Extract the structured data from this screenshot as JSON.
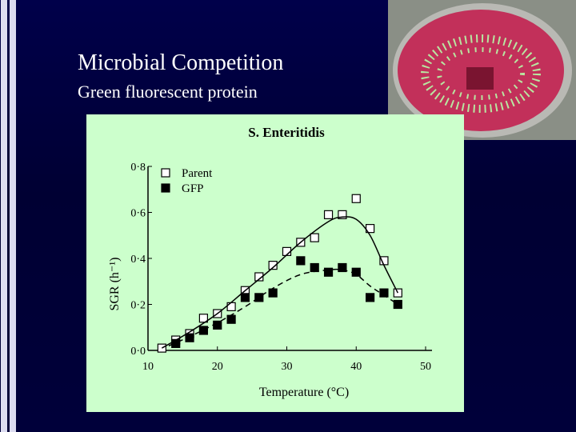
{
  "header": {
    "title": "Microbial Competition",
    "subtitle": "Green fluorescent protein"
  },
  "chart_data": {
    "type": "scatter",
    "title": "S. Enteritidis",
    "x_label": "Temperature (°C)",
    "y_label": "SGR (h⁻¹)",
    "xlim": [
      10,
      50
    ],
    "xticks": [
      10,
      20,
      30,
      40,
      50
    ],
    "ylim": [
      0,
      0.8
    ],
    "yticks": [
      {
        "value": 0,
        "label": "0·0"
      },
      {
        "value": 0.2,
        "label": "0·2"
      },
      {
        "value": 0.4,
        "label": "0·4"
      },
      {
        "value": 0.6,
        "label": "0·6"
      },
      {
        "value": 0.8,
        "label": "0·8"
      }
    ],
    "legend": "upper left",
    "series": [
      {
        "name": "Parent",
        "color": "#000000",
        "marker": "open-square",
        "line": "none",
        "x": [
          12,
          14,
          16,
          18,
          20,
          22,
          24,
          26,
          28,
          30,
          32,
          34,
          36,
          38,
          40,
          42,
          44,
          46
        ],
        "values": [
          0.01,
          0.045,
          0.073,
          0.14,
          0.16,
          0.19,
          0.26,
          0.32,
          0.37,
          0.43,
          0.47,
          0.49,
          0.59,
          0.59,
          0.66,
          0.53,
          0.39,
          0.25
        ]
      },
      {
        "name": "GFP",
        "color": "#000000",
        "marker": "filled-square",
        "line": "none",
        "x": [
          14,
          16,
          18,
          20,
          22,
          24,
          26,
          28,
          32,
          34,
          36,
          38,
          40,
          42,
          44,
          46
        ],
        "values": [
          0.03,
          0.055,
          0.087,
          0.11,
          0.135,
          0.23,
          0.23,
          0.25,
          0.39,
          0.36,
          0.34,
          0.36,
          0.34,
          0.23,
          0.25,
          0.2
        ]
      },
      {
        "color": "#000000",
        "marker": "none",
        "line": "solid",
        "x": [
          12,
          16,
          20,
          24,
          28,
          32,
          36,
          38,
          40,
          42,
          44,
          46
        ],
        "values": [
          0.01,
          0.08,
          0.16,
          0.26,
          0.36,
          0.47,
          0.56,
          0.58,
          0.57,
          0.5,
          0.37,
          0.25
        ]
      },
      {
        "color": "#000000",
        "marker": "none",
        "line": "dashed",
        "x": [
          13,
          16,
          20,
          24,
          28,
          32,
          36,
          38,
          40,
          42,
          44,
          46
        ],
        "values": [
          0.02,
          0.06,
          0.12,
          0.19,
          0.27,
          0.33,
          0.35,
          0.35,
          0.33,
          0.28,
          0.24,
          0.2
        ]
      }
    ]
  }
}
